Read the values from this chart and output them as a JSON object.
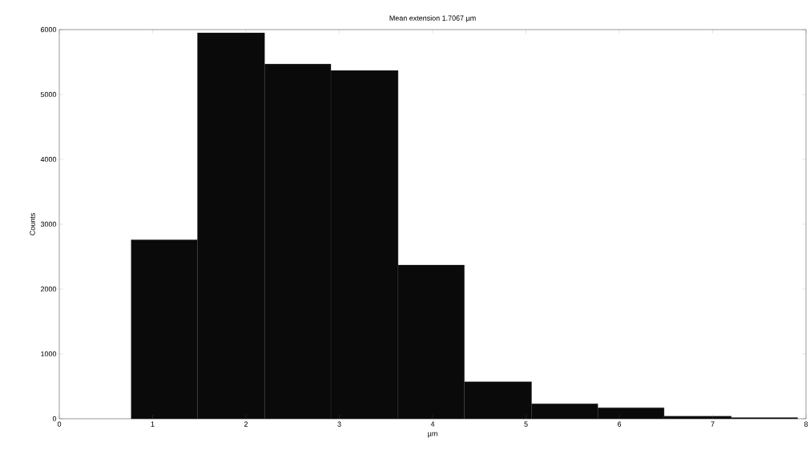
{
  "chart_data": {
    "type": "histogram",
    "title": "Mean extension 1.7067 µm",
    "xlabel": "µm",
    "ylabel": "Counts",
    "bins": [
      0.77,
      1.48,
      2.2,
      2.91,
      3.63,
      4.34,
      5.06,
      5.77,
      6.48,
      7.2,
      7.91
    ],
    "values": [
      2760,
      5950,
      5470,
      5370,
      2370,
      570,
      230,
      170,
      40,
      20
    ],
    "color": "#0a0a0a",
    "xlim": [
      0,
      8
    ],
    "ylim": [
      0,
      6000
    ],
    "xticks": [
      0,
      1,
      2,
      3,
      4,
      5,
      6,
      7,
      8
    ],
    "yticks": [
      0,
      1000,
      2000,
      3000,
      4000,
      5000,
      6000
    ]
  }
}
